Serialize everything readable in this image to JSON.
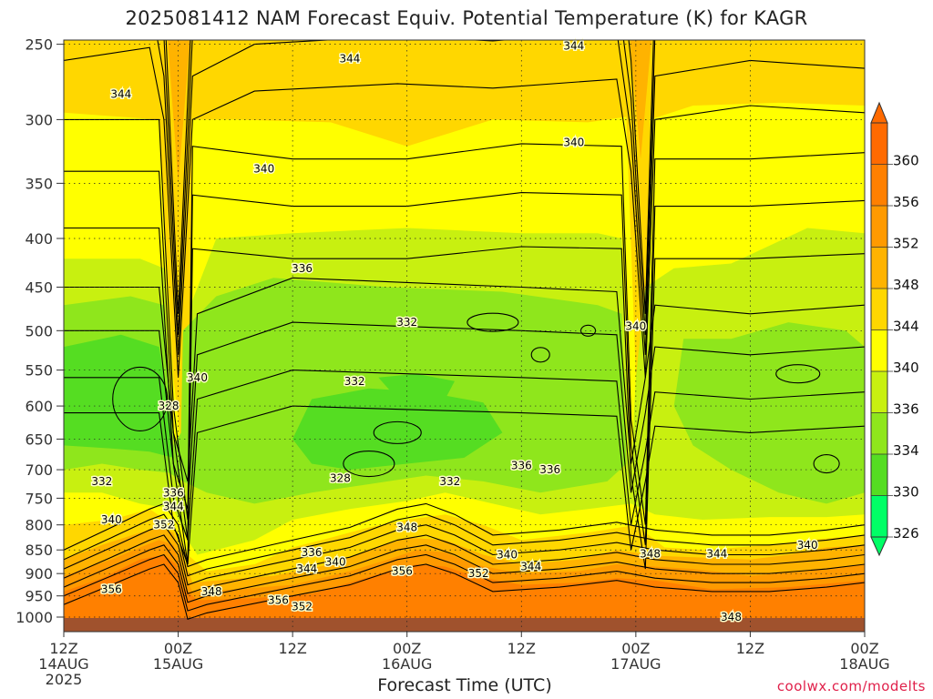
{
  "title": "2025081412 NAM Forecast Equiv. Potential Temperature (K) for KAGR",
  "xlabel": "Forecast Time (UTC)",
  "credit": "coolwx.com/modelts",
  "colors": {
    "c326": "#00ff66",
    "c330": "#55dd22",
    "c334": "#8fe61c",
    "c336": "#c8f010",
    "c340": "#ffff00",
    "c344": "#ffd700",
    "c348": "#ffb300",
    "c352": "#ff9a00",
    "c356": "#ff8000",
    "c360": "#ff6a00",
    "ground": "#a0522d"
  },
  "chart_data": {
    "type": "heatmap",
    "title": "2025081412 NAM Forecast Equiv. Potential Temperature (K) for KAGR",
    "xlabel": "Forecast Time (UTC)",
    "ylabel": "",
    "y_scale": "log-pressure",
    "y_inverted": true,
    "x_ticks": [
      {
        "hours": 0,
        "line1": "12Z",
        "line2": "14AUG",
        "line3": "2025"
      },
      {
        "hours": 12,
        "line1": "00Z",
        "line2": "15AUG",
        "line3": ""
      },
      {
        "hours": 24,
        "line1": "12Z",
        "line2": "",
        "line3": ""
      },
      {
        "hours": 36,
        "line1": "00Z",
        "line2": "16AUG",
        "line3": ""
      },
      {
        "hours": 48,
        "line1": "12Z",
        "line2": "",
        "line3": ""
      },
      {
        "hours": 60,
        "line1": "00Z",
        "line2": "17AUG",
        "line3": ""
      },
      {
        "hours": 72,
        "line1": "12Z",
        "line2": "",
        "line3": ""
      },
      {
        "hours": 84,
        "line1": "00Z",
        "line2": "18AUG",
        "line3": ""
      }
    ],
    "y_ticks": [
      250,
      300,
      350,
      400,
      450,
      500,
      550,
      600,
      650,
      700,
      750,
      800,
      850,
      900,
      950,
      1000
    ],
    "colorbar": {
      "levels": [
        326,
        330,
        334,
        336,
        340,
        344,
        348,
        352,
        356,
        360
      ],
      "extend": "both"
    },
    "contour_labels": [
      {
        "text": "344",
        "x_hours": 6,
        "p": 282
      },
      {
        "text": "344",
        "x_hours": 30,
        "p": 259
      },
      {
        "text": "344",
        "x_hours": 53.5,
        "p": 251
      },
      {
        "text": "340",
        "x_hours": 21,
        "p": 338
      },
      {
        "text": "340",
        "x_hours": 53.5,
        "p": 317
      },
      {
        "text": "336",
        "x_hours": 25,
        "p": 430
      },
      {
        "text": "332",
        "x_hours": 36,
        "p": 490
      },
      {
        "text": "332",
        "x_hours": 30.5,
        "p": 565
      },
      {
        "text": "340",
        "x_hours": 14,
        "p": 560
      },
      {
        "text": "340",
        "x_hours": 60,
        "p": 495
      },
      {
        "text": "328",
        "x_hours": 11,
        "p": 600
      },
      {
        "text": "328",
        "x_hours": 29,
        "p": 715
      },
      {
        "text": "332",
        "x_hours": 4,
        "p": 720
      },
      {
        "text": "332",
        "x_hours": 40.5,
        "p": 720
      },
      {
        "text": "336",
        "x_hours": 48,
        "p": 693
      },
      {
        "text": "336",
        "x_hours": 51,
        "p": 700
      },
      {
        "text": "336",
        "x_hours": 11.5,
        "p": 740
      },
      {
        "text": "344",
        "x_hours": 11.5,
        "p": 765
      },
      {
        "text": "340",
        "x_hours": 5,
        "p": 790
      },
      {
        "text": "352",
        "x_hours": 10.5,
        "p": 800
      },
      {
        "text": "348",
        "x_hours": 36,
        "p": 805
      },
      {
        "text": "336",
        "x_hours": 26,
        "p": 855
      },
      {
        "text": "340",
        "x_hours": 28.5,
        "p": 875
      },
      {
        "text": "344",
        "x_hours": 25.5,
        "p": 890
      },
      {
        "text": "340",
        "x_hours": 46.5,
        "p": 860
      },
      {
        "text": "344",
        "x_hours": 49,
        "p": 885
      },
      {
        "text": "348",
        "x_hours": 61.5,
        "p": 858
      },
      {
        "text": "344",
        "x_hours": 68.5,
        "p": 858
      },
      {
        "text": "340",
        "x_hours": 78,
        "p": 840
      },
      {
        "text": "356",
        "x_hours": 35.5,
        "p": 895
      },
      {
        "text": "352",
        "x_hours": 43.5,
        "p": 900
      },
      {
        "text": "356",
        "x_hours": 5,
        "p": 935
      },
      {
        "text": "348",
        "x_hours": 15.5,
        "p": 940
      },
      {
        "text": "356",
        "x_hours": 22.5,
        "p": 960
      },
      {
        "text": "352",
        "x_hours": 25,
        "p": 975
      },
      {
        "text": "348",
        "x_hours": 70,
        "p": 1000
      }
    ]
  }
}
